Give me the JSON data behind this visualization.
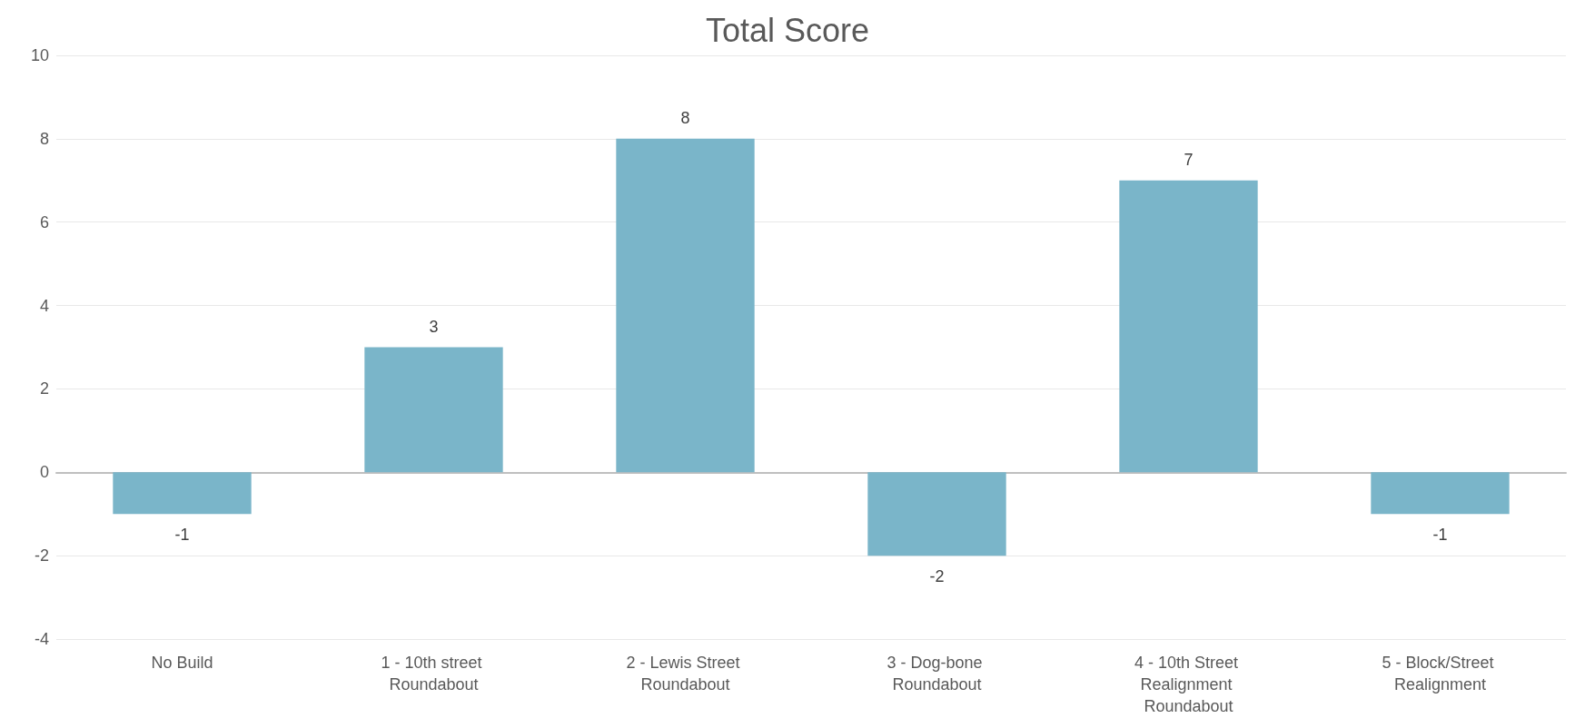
{
  "chart_data": {
    "type": "bar",
    "title": "Total Score",
    "categories": [
      "No Build",
      "1 - 10th street Roundabout",
      "2 - Lewis Street Roundabout",
      "3 - Dog-bone Roundabout",
      "4 - 10th Street Realignment Roundabout",
      "5 - Block/Street Realignment"
    ],
    "values": [
      -1,
      3,
      8,
      -2,
      7,
      -1
    ],
    "color": "#7ab5c9",
    "ylim": [
      -4,
      10
    ],
    "yticks": [
      -4,
      -2,
      0,
      2,
      4,
      6,
      8,
      10
    ],
    "grid": "y",
    "data_labels": true
  }
}
